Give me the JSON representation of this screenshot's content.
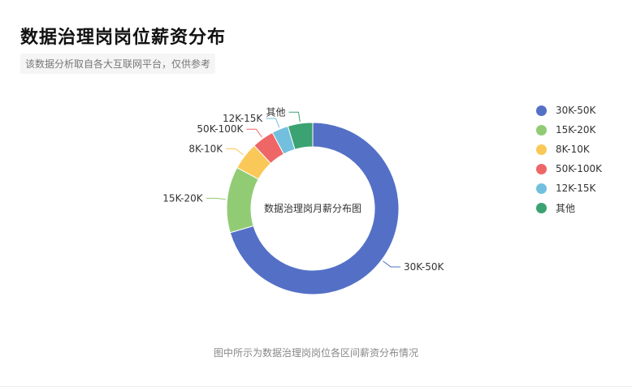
{
  "page": {
    "title": "数据治理岗岗位薪资分布",
    "subtitle": "该数据分析取自各大互联网平台，仅供参考",
    "caption": "图中所示为数据治理岗岗位各区间薪资分布情况"
  },
  "chart_data": {
    "type": "pie",
    "donut": true,
    "center_label": "数据治理岗月薪分布图",
    "legend_position": "right",
    "categories": [
      "30K-50K",
      "15K-20K",
      "8K-10K",
      "50K-100K",
      "12K-15K",
      "其他"
    ],
    "values": [
      68,
      12,
      5,
      4,
      3,
      4.5
    ],
    "colors": [
      "#5470c6",
      "#91cc75",
      "#fac858",
      "#ee6666",
      "#73c0de",
      "#3ba272"
    ]
  }
}
